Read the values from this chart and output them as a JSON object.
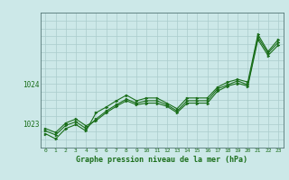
{
  "title": "Graphe pression niveau de la mer (hPa)",
  "background_color": "#cce8e8",
  "grid_color": "#aacccc",
  "line_color": "#1a6e1a",
  "marker_color": "#1a6e1a",
  "xlim": [
    -0.5,
    23.5
  ],
  "ylim": [
    1022.4,
    1025.8
  ],
  "yticks": [
    1023,
    1024
  ],
  "xticks": [
    0,
    1,
    2,
    3,
    4,
    5,
    6,
    7,
    8,
    9,
    10,
    11,
    12,
    13,
    14,
    15,
    16,
    17,
    18,
    19,
    20,
    21,
    22,
    23
  ],
  "series": [
    [
      1022.75,
      1022.62,
      1022.88,
      1022.98,
      1022.82,
      1023.28,
      1023.42,
      1023.58,
      1023.72,
      1023.58,
      1023.65,
      1023.65,
      1023.52,
      1023.38,
      1023.65,
      1023.65,
      1023.65,
      1023.92,
      1024.05,
      1024.12,
      1024.05,
      1025.25,
      1024.82,
      1025.12
    ],
    [
      1022.82,
      1022.72,
      1022.96,
      1023.05,
      1022.88,
      1023.12,
      1023.32,
      1023.48,
      1023.62,
      1023.52,
      1023.58,
      1023.58,
      1023.48,
      1023.32,
      1023.58,
      1023.58,
      1023.58,
      1023.88,
      1023.98,
      1024.08,
      1023.98,
      1025.18,
      1024.78,
      1025.05
    ],
    [
      1022.88,
      1022.78,
      1023.02,
      1023.12,
      1022.95,
      1023.08,
      1023.28,
      1023.44,
      1023.58,
      1023.48,
      1023.52,
      1023.52,
      1023.44,
      1023.28,
      1023.52,
      1023.52,
      1023.52,
      1023.82,
      1023.95,
      1024.02,
      1023.95,
      1025.12,
      1024.72,
      1024.98
    ]
  ]
}
